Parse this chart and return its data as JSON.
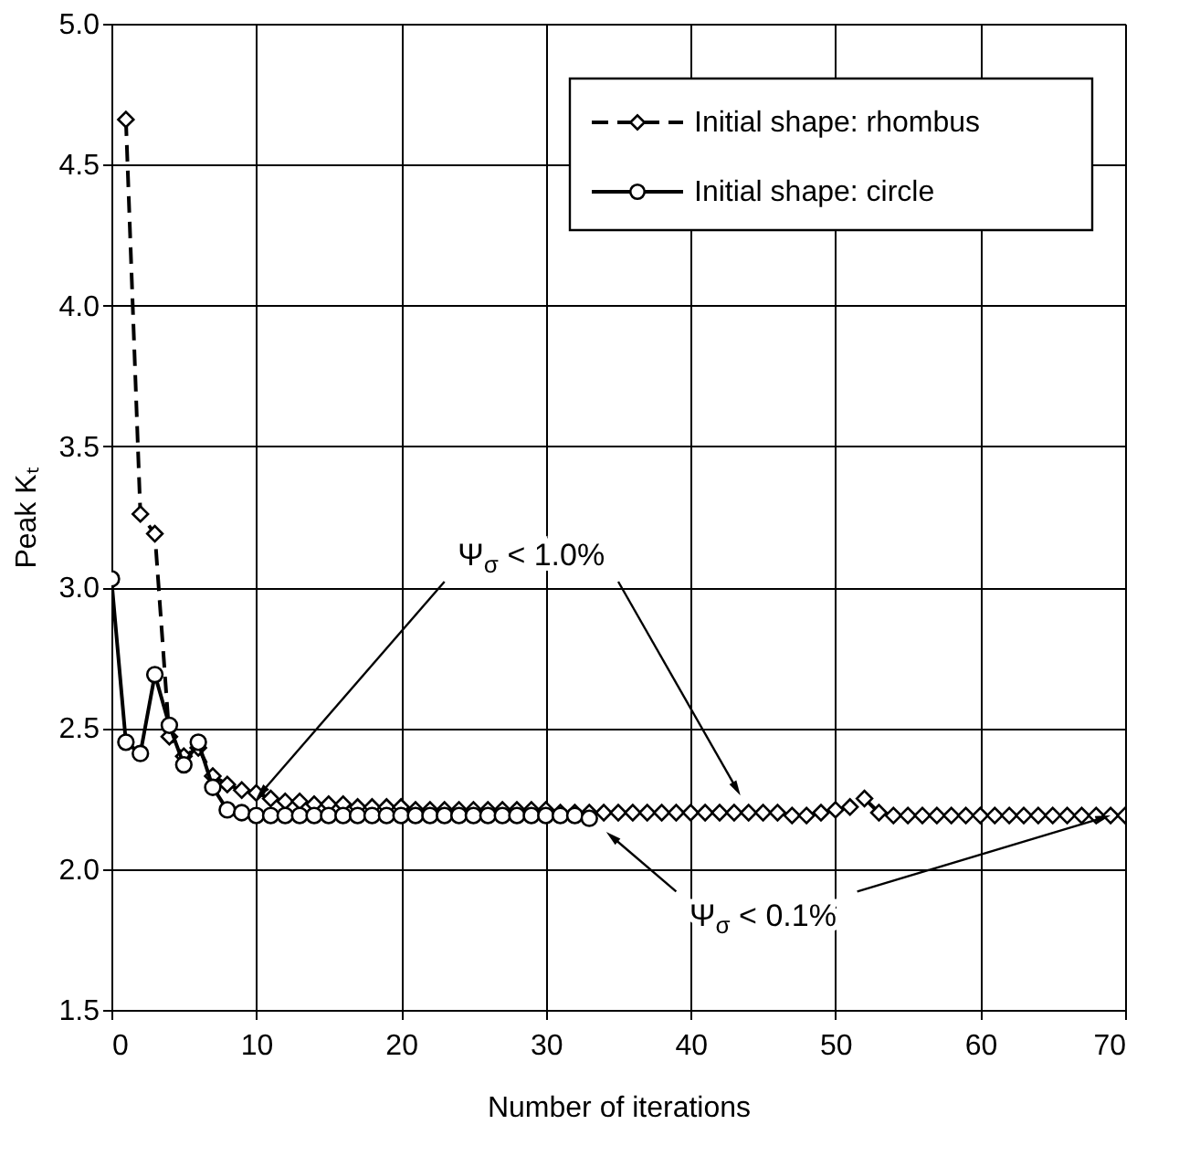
{
  "chart_data": {
    "type": "line",
    "xlabel": "Number of iterations",
    "ylabel": "Peak Kₜ",
    "xlim": [
      0,
      70
    ],
    "xticks": [
      0,
      10,
      20,
      30,
      40,
      50,
      60,
      70
    ],
    "ylim": [
      1.5,
      5.0
    ],
    "yticks": [
      1.5,
      {
        "value": 2,
        "label": "2.0"
      },
      2.5,
      {
        "value": 3,
        "label": "3.0"
      },
      3.5,
      {
        "value": 4,
        "label": "4.0"
      },
      4.5,
      {
        "value": 5,
        "label": "5.0"
      }
    ],
    "grid": true,
    "legend": "top right",
    "series": [
      {
        "name": "Initial shape: rhombus",
        "color": "#000000",
        "marker": "diamond",
        "line_style": "dashed",
        "x": [
          1,
          2,
          3,
          4,
          5,
          6,
          7,
          8,
          9,
          10,
          11,
          12,
          13,
          14,
          15,
          16,
          17,
          18,
          19,
          20,
          21,
          22,
          23,
          24,
          25,
          26,
          27,
          28,
          29,
          30,
          31,
          32,
          33,
          34,
          35,
          36,
          37,
          38,
          39,
          40,
          41,
          42,
          43,
          44,
          45,
          46,
          47,
          48,
          49,
          50,
          51,
          52,
          53,
          54,
          55,
          56,
          57,
          58,
          59,
          60,
          61,
          62,
          63,
          64,
          65,
          66,
          67,
          68,
          69,
          70
        ],
        "values": [
          4.66,
          3.26,
          3.19,
          2.47,
          2.4,
          2.43,
          2.33,
          2.3,
          2.28,
          2.27,
          2.25,
          2.24,
          2.24,
          2.23,
          2.23,
          2.23,
          2.22,
          2.22,
          2.22,
          2.22,
          2.21,
          2.21,
          2.21,
          2.21,
          2.21,
          2.21,
          2.21,
          2.21,
          2.21,
          2.21,
          2.2,
          2.2,
          2.2,
          2.2,
          2.2,
          2.2,
          2.2,
          2.2,
          2.2,
          2.2,
          2.2,
          2.2,
          2.2,
          2.2,
          2.2,
          2.2,
          2.19,
          2.19,
          2.2,
          2.21,
          2.22,
          2.25,
          2.2,
          2.19,
          2.19,
          2.19,
          2.19,
          2.19,
          2.19,
          2.19,
          2.19,
          2.19,
          2.19,
          2.19,
          2.19,
          2.19,
          2.19,
          2.19,
          2.19,
          2.19
        ]
      },
      {
        "name": "Initial shape: circle",
        "color": "#000000",
        "marker": "circle",
        "line_style": "solid",
        "x": [
          0,
          1,
          2,
          3,
          4,
          5,
          6,
          7,
          8,
          9,
          10,
          11,
          12,
          13,
          14,
          15,
          16,
          17,
          18,
          19,
          20,
          21,
          22,
          23,
          24,
          25,
          26,
          27,
          28,
          29,
          30,
          31,
          32,
          33
        ],
        "values": [
          3.03,
          2.45,
          2.41,
          2.69,
          2.51,
          2.37,
          2.45,
          2.29,
          2.21,
          2.2,
          2.19,
          2.19,
          2.19,
          2.19,
          2.19,
          2.19,
          2.19,
          2.19,
          2.19,
          2.19,
          2.19,
          2.19,
          2.19,
          2.19,
          2.19,
          2.19,
          2.19,
          2.19,
          2.19,
          2.19,
          2.19,
          2.19,
          2.19,
          2.18
        ]
      }
    ],
    "annotations": [
      {
        "text": "Ψ$_{σ}$ < 1.0%",
        "x": 10,
        "y": 2.25
      },
      {
        "text": "Ψ$_{σ}$ < 0.1%",
        "x": 69,
        "y": 2.19
      }
    ]
  }
}
